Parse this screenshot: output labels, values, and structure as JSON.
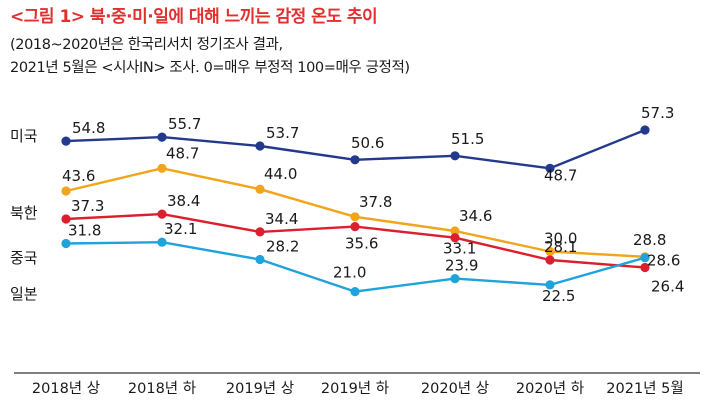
{
  "title": "<그림 1> 북·중·미·일에 대해 느끼는 감정 온도 추이",
  "subtitle_line1": "(2018~2020년은 한국리서치 정기조사 결과,",
  "subtitle_line2": "2021년 5월은 <시사IN> 조사. 0=매우 부정적 100=매우 긍정적)",
  "chart_data": {
    "type": "line",
    "categories": [
      "2018년 상",
      "2018년 하",
      "2019년 상",
      "2019년 하",
      "2020년 상",
      "2020년 하",
      "2021년 5월"
    ],
    "series": [
      {
        "name": "미국",
        "color": "#233a8c",
        "values": [
          54.8,
          55.7,
          53.7,
          50.6,
          51.5,
          48.7,
          57.3
        ]
      },
      {
        "name": "북한",
        "color": "#f0a51c",
        "values": [
          43.6,
          48.7,
          44.0,
          37.8,
          34.6,
          30.0,
          28.8
        ]
      },
      {
        "name": "중국",
        "color": "#dc1f2e",
        "values": [
          37.3,
          38.4,
          34.4,
          35.6,
          33.1,
          28.1,
          26.4
        ]
      },
      {
        "name": "일본",
        "color": "#1ea3dc",
        "values": [
          31.8,
          32.1,
          28.2,
          21.0,
          23.9,
          22.5,
          28.6
        ]
      }
    ],
    "ylim": [
      18,
      62
    ],
    "xlabel": "",
    "ylabel": ""
  }
}
